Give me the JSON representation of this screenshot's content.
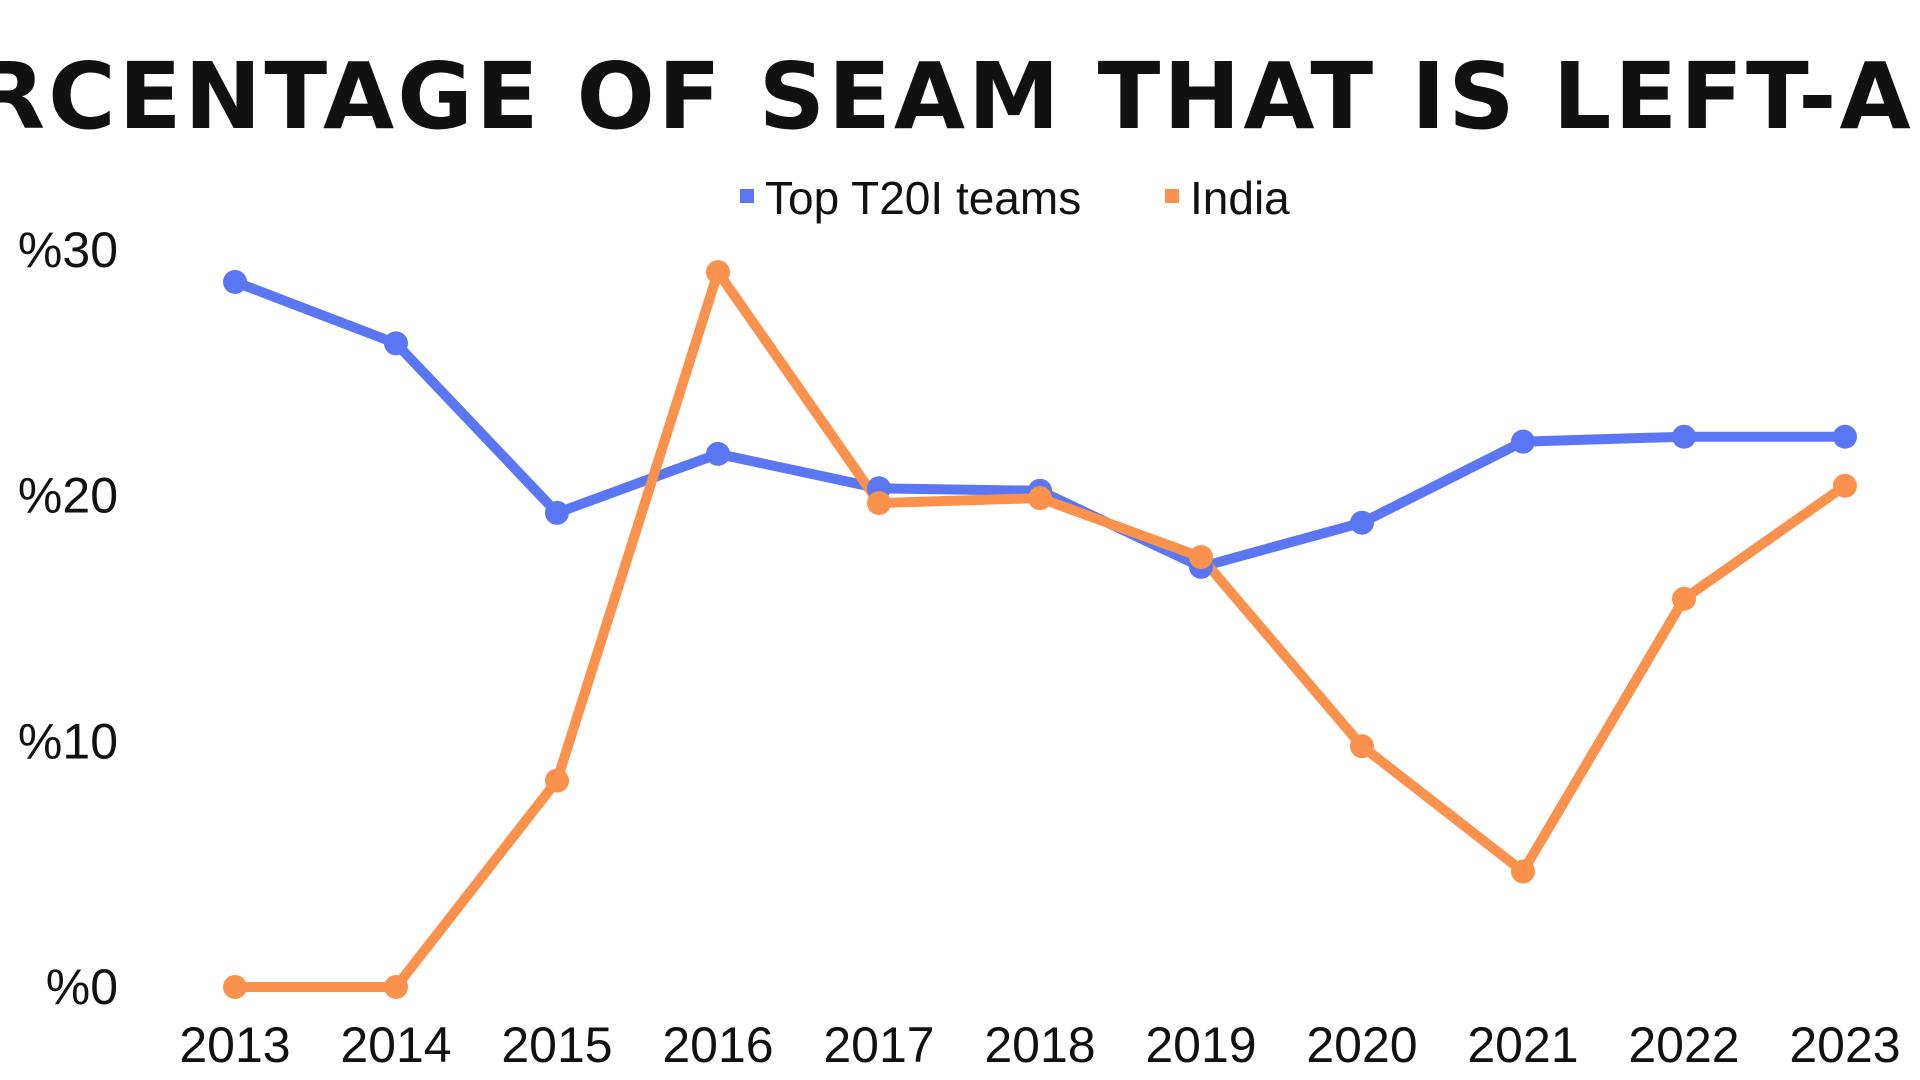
{
  "chart_data": {
    "type": "line",
    "title": "PERCENTAGE OF SEAM THAT IS LEFT-ARM",
    "x": [
      "2013",
      "2014",
      "2015",
      "2016",
      "2017",
      "2018",
      "2019",
      "2020",
      "2021",
      "2022",
      "2023"
    ],
    "y_ticks": [
      0,
      10,
      20,
      30
    ],
    "y_tick_labels": [
      "%0",
      "%10",
      "%20",
      "%30"
    ],
    "ylim": [
      0,
      30
    ],
    "grid": false,
    "legend_position": "top-center",
    "series": [
      {
        "name": "Top T20I teams",
        "color": "#5a76f2",
        "values": [
          28.7,
          26.2,
          19.3,
          21.7,
          20.3,
          20.2,
          17.1,
          18.9,
          22.2,
          22.4,
          22.4
        ]
      },
      {
        "name": "India",
        "color": "#fa914c",
        "values": [
          0,
          0,
          8.4,
          29.1,
          19.7,
          19.9,
          17.5,
          9.8,
          4.7,
          15.8,
          20.4
        ]
      }
    ]
  }
}
